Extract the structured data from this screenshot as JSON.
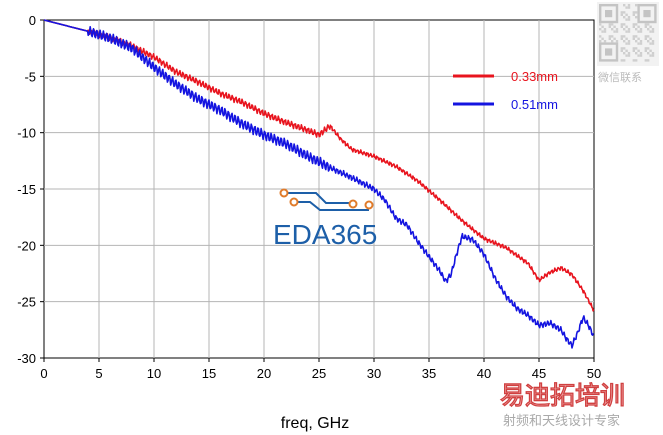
{
  "chart_data": {
    "type": "line",
    "xlabel": "freq, GHz",
    "ylabel": "",
    "xlim": [
      0,
      50
    ],
    "ylim": [
      -30,
      0
    ],
    "x_ticks": [
      "0",
      "5",
      "10",
      "15",
      "20",
      "25",
      "30",
      "35",
      "40",
      "45",
      "50"
    ],
    "y_ticks": [
      "0",
      "-5",
      "-10",
      "-15",
      "-20",
      "-25",
      "-30"
    ],
    "grid": true,
    "legend_placement": "top-right",
    "series": [
      {
        "name": "0.33mm",
        "color": "#e8141e",
        "x": [
          0,
          2,
          4,
          6,
          8,
          10,
          12,
          14,
          16,
          18,
          20,
          22,
          24,
          25,
          26,
          27,
          28,
          30,
          32,
          34,
          36,
          38,
          40,
          42,
          44,
          45,
          46,
          47,
          48,
          49,
          50
        ],
        "y": [
          0,
          -0.5,
          -1.0,
          -1.6,
          -2.3,
          -3.3,
          -4.6,
          -5.5,
          -6.5,
          -7.3,
          -8.3,
          -9.1,
          -9.8,
          -10.2,
          -9.4,
          -10.6,
          -11.5,
          -12.1,
          -13.0,
          -14.3,
          -16.0,
          -17.8,
          -19.4,
          -20.2,
          -21.6,
          -23.1,
          -22.4,
          -22.0,
          -22.6,
          -24.0,
          -25.8
        ]
      },
      {
        "name": "0.51mm",
        "color": "#1414e0",
        "x": [
          0,
          2,
          4,
          6,
          8,
          10,
          12,
          14,
          16,
          18,
          20,
          22,
          24,
          26,
          28,
          30,
          31,
          32,
          33,
          34,
          35,
          36,
          36.5,
          37,
          37.5,
          38,
          39,
          40,
          41,
          42,
          43,
          44,
          45,
          46,
          47,
          47.5,
          48,
          48.5,
          49,
          49.5,
          50
        ],
        "y": [
          0,
          -0.5,
          -1.0,
          -1.6,
          -2.5,
          -4.2,
          -5.7,
          -7.0,
          -8.0,
          -9.2,
          -10.2,
          -11.0,
          -12.1,
          -13.1,
          -14.0,
          -15.0,
          -16.0,
          -17.6,
          -18.2,
          -19.7,
          -21.0,
          -22.3,
          -23.2,
          -22.6,
          -20.8,
          -19.2,
          -19.5,
          -20.8,
          -22.9,
          -24.5,
          -25.6,
          -26.2,
          -27.1,
          -26.9,
          -27.5,
          -28.3,
          -28.9,
          -27.8,
          -26.4,
          -27.1,
          -28.1
        ]
      }
    ]
  },
  "watermarks": {
    "logo_text": "EDA365",
    "qr_caption": "微信联系",
    "brand_text": "易迪拓培训",
    "brand_subtext": "射频和天线设计专家"
  }
}
